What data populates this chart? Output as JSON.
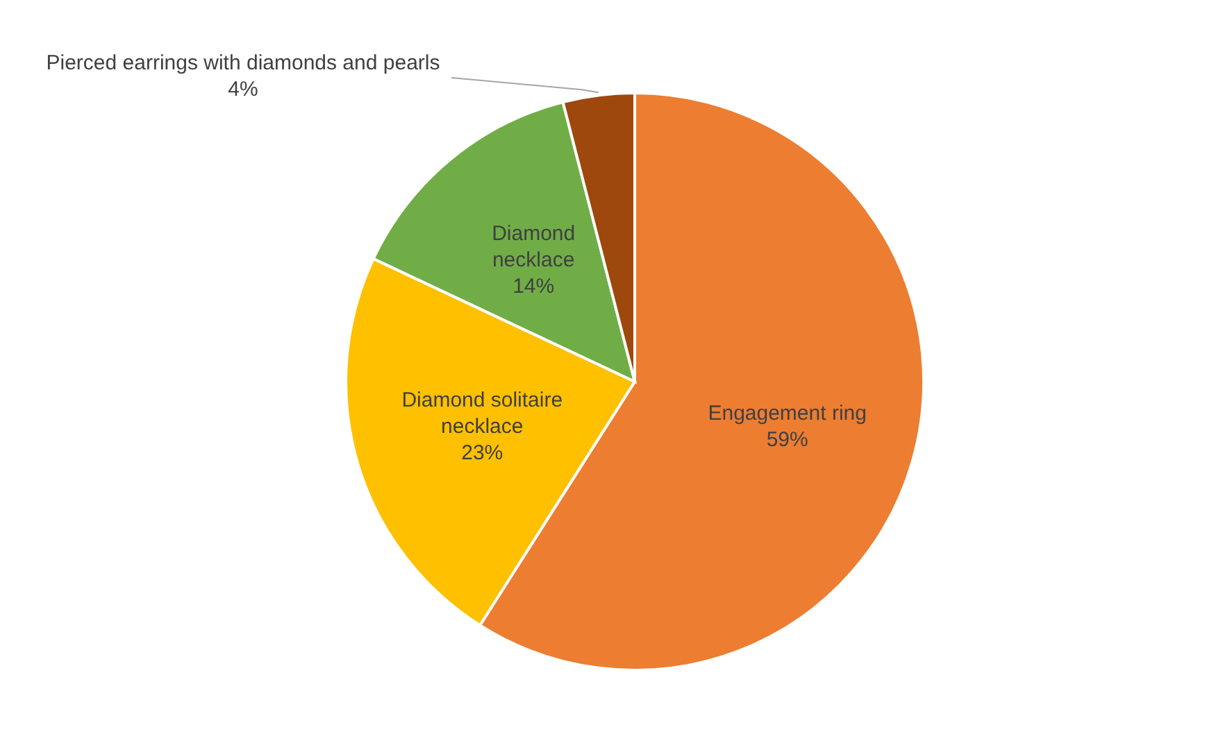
{
  "chart_data": {
    "type": "pie",
    "categories": [
      "Engagement ring",
      "Diamond solitaire necklace",
      "Diamond necklace",
      "Pierced earrings with diamonds and pearls"
    ],
    "values": [
      59,
      23,
      14,
      4
    ],
    "value_labels": [
      "59%",
      "23%",
      "14%",
      "4%"
    ],
    "colors": [
      "#ed7d31",
      "#ffc000",
      "#70ad47",
      "#9e480e"
    ],
    "legend": false
  }
}
